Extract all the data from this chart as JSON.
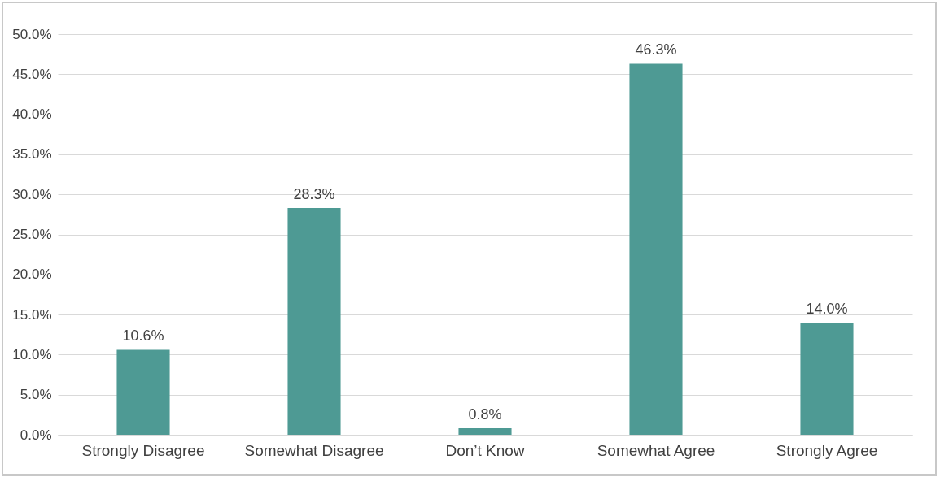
{
  "chart_data": {
    "type": "bar",
    "categories": [
      "Strongly  Disagree",
      "Somewhat Disagree",
      "Don’t Know",
      "Somewhat Agree",
      "Strongly Agree"
    ],
    "values": [
      10.6,
      28.3,
      0.8,
      46.3,
      14.0
    ],
    "value_labels": [
      "10.6%",
      "28.3%",
      "0.8%",
      "46.3%",
      "14.0%"
    ],
    "color": "#4e9a94",
    "ylim": [
      0,
      50
    ],
    "yticks": [
      {
        "value": 0,
        "label": "0.0%"
      },
      {
        "value": 5,
        "label": "5.0%"
      },
      {
        "value": 10,
        "label": "10.0%"
      },
      {
        "value": 15,
        "label": "15.0%"
      },
      {
        "value": 20,
        "label": "20.0%"
      },
      {
        "value": 25,
        "label": "25.0%"
      },
      {
        "value": 30,
        "label": "30.0%"
      },
      {
        "value": 35,
        "label": "35.0%"
      },
      {
        "value": 40,
        "label": "40.0%"
      },
      {
        "value": 45,
        "label": "45.0%"
      },
      {
        "value": 50,
        "label": "50.0%"
      }
    ],
    "grid": "y"
  }
}
